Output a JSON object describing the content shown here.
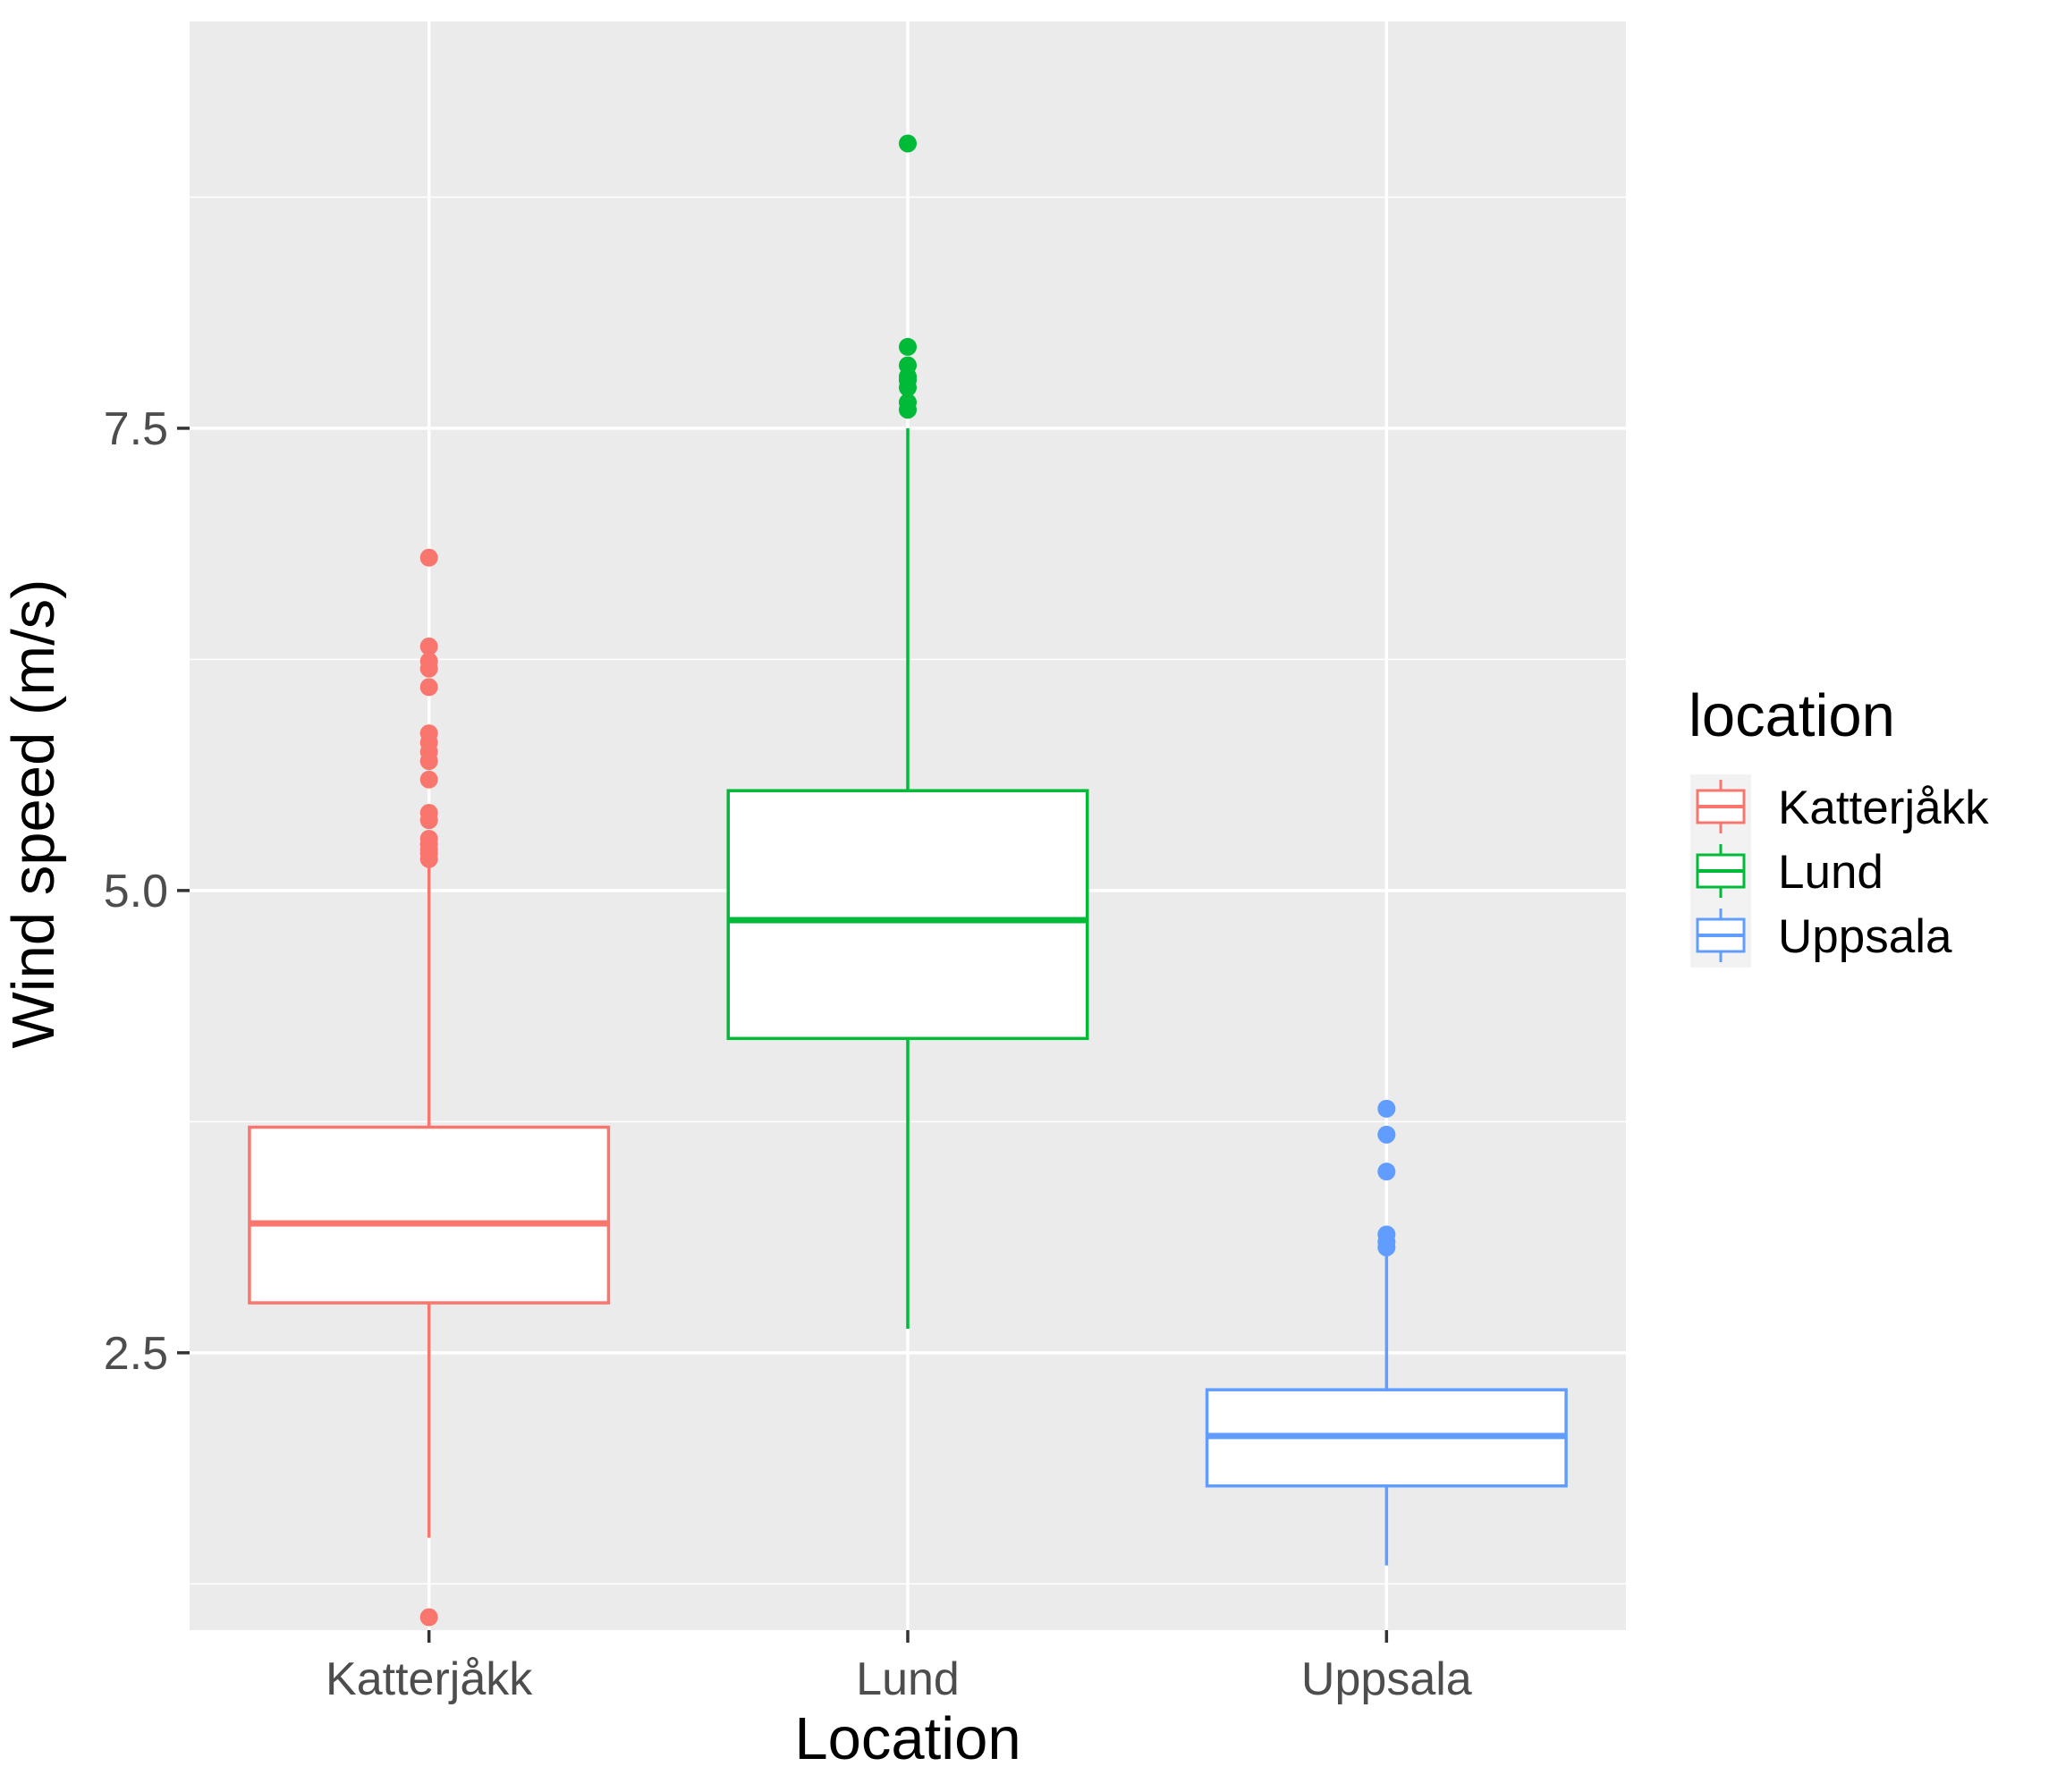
{
  "chart_data": {
    "type": "boxplot",
    "xlabel": "Location",
    "ylabel": "Wind speed (m/s)",
    "ylim": [
      1.0,
      9.7
    ],
    "y_ticks": [
      "2.5",
      "5.0",
      "7.5"
    ],
    "y_tick_values": [
      2.5,
      5.0,
      7.5
    ],
    "y_minor_ticks": [
      1.25,
      3.75,
      6.25,
      8.75
    ],
    "grid": true,
    "panel_background": "#EBEBEB",
    "grid_color": "#FFFFFF",
    "categories": [
      "Katterjåkk",
      "Lund",
      "Uppsala"
    ],
    "legend": {
      "title": "location",
      "placement": "right",
      "entries": [
        "Katterjåkk",
        "Lund",
        "Uppsala"
      ]
    },
    "series": [
      {
        "name": "Katterjåkk",
        "color": "#F8766D",
        "whisker_low": 1.5,
        "q1": 2.77,
        "median": 3.2,
        "q3": 3.72,
        "whisker_high": 5.15,
        "outliers": [
          1.07,
          5.17,
          5.2,
          5.22,
          5.25,
          5.28,
          5.38,
          5.42,
          5.6,
          5.7,
          5.75,
          5.8,
          5.85,
          6.1,
          6.2,
          6.24,
          6.32,
          6.8
        ]
      },
      {
        "name": "Lund",
        "color": "#00BA38",
        "whisker_low": 2.63,
        "q1": 4.2,
        "median": 4.84,
        "q3": 5.54,
        "whisker_high": 7.5,
        "outliers": [
          7.6,
          7.64,
          7.72,
          7.76,
          7.78,
          7.84,
          7.94,
          9.04
        ]
      },
      {
        "name": "Uppsala",
        "color": "#619CFF",
        "whisker_low": 1.35,
        "q1": 1.78,
        "median": 2.05,
        "q3": 2.3,
        "whisker_high": 3.05,
        "outliers": [
          3.07,
          3.1,
          3.14,
          3.48,
          3.68,
          3.82
        ]
      }
    ]
  }
}
